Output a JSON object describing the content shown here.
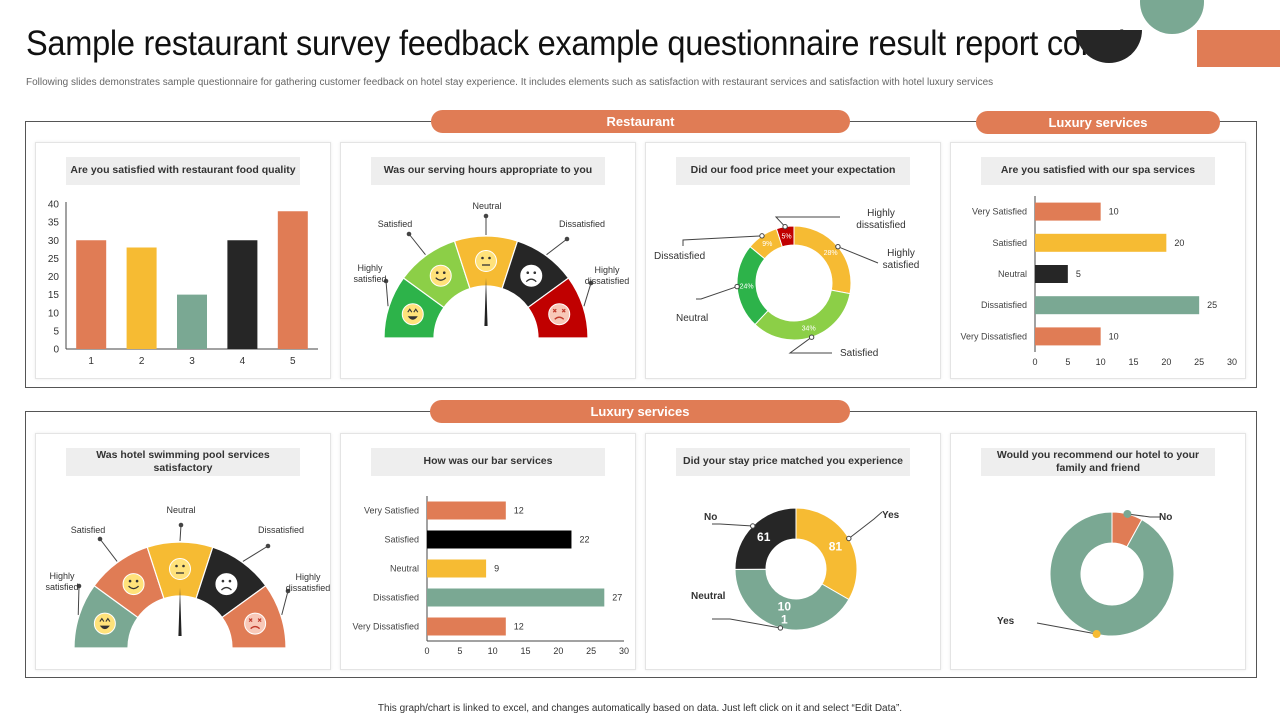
{
  "title": "Sample restaurant survey feedback example questionnaire result report contd.",
  "subtitle": "Following slides demonstrates sample questionnaire for gathering customer feedback on hotel stay experience. It includes elements such as satisfaction with restaurant services and satisfaction with hotel luxury services",
  "footer": "This graph/chart is linked to excel, and changes automatically based on data. Just left click on it and select “Edit Data”.",
  "sections": {
    "restaurant_label": "Restaurant",
    "luxury_top_label": "Luxury services",
    "luxury_bottom_label": "Luxury services"
  },
  "colors": {
    "orange": "#e07c55",
    "yellow": "#f6bb33",
    "green": "#7aa893",
    "black": "#262626",
    "bright_green": "#2db34a",
    "light_green": "#8ccf47",
    "red": "#c00000"
  },
  "cards": {
    "c1": "Are you satisfied  with restaurant  food quality",
    "c2": "Was our serving hours appropriate to you",
    "c3": "Did our food price meet your expectation",
    "c4": "Are you satisfied  with our spa services",
    "c5": "Was hotel swimming pool services satisfactory",
    "c6": "How was our bar services",
    "c7": "Did your stay  price matched  you experience",
    "c8": "Would you recommend our hotel to your family and friend"
  },
  "chart_data": [
    {
      "id": "food-quality",
      "type": "bar",
      "categories": [
        "1",
        "2",
        "3",
        "4",
        "5"
      ],
      "values": [
        30,
        28,
        15,
        30,
        38
      ],
      "colors": [
        "#e07c55",
        "#f6bb33",
        "#7aa893",
        "#262626",
        "#e07c55"
      ],
      "ylim": [
        0,
        40
      ],
      "yticks": [
        "0",
        "5",
        "10",
        "15",
        "20",
        "25",
        "30",
        "35",
        "40"
      ]
    },
    {
      "id": "serving-hours",
      "type": "gauge",
      "segments": [
        {
          "label": "Highly satisfied",
          "color": "#2db34a",
          "face": "very-happy"
        },
        {
          "label": "Satisfied",
          "color": "#8ccf47",
          "face": "happy"
        },
        {
          "label": "Neutral",
          "color": "#f6bb33",
          "face": "neutral"
        },
        {
          "label": "Dissatisfied",
          "color": "#262626",
          "face": "sad"
        },
        {
          "label": "Highly dissatisfied",
          "color": "#c00000",
          "face": "very-sad"
        }
      ]
    },
    {
      "id": "food-price",
      "type": "pie",
      "slices": [
        {
          "label": "Highly dissatisfied",
          "value": 5,
          "text": "5%",
          "color": "#c00000"
        },
        {
          "label": "Highly satisfied",
          "value": 28,
          "text": "28%",
          "color": "#f6bb33"
        },
        {
          "label": "Satisfied",
          "value": 34,
          "text": "34%",
          "color": "#8ccf47"
        },
        {
          "label": "Neutral",
          "value": 24,
          "text": "24%",
          "color": "#2db34a"
        },
        {
          "label": "Dissatisfied",
          "value": 9,
          "text": "9%",
          "color": "#f6bb33"
        }
      ]
    },
    {
      "id": "spa-services",
      "type": "bar",
      "orientation": "horizontal",
      "categories": [
        "Very Satisfied",
        "Satisfied",
        "Neutral",
        "Dissatisfied",
        "Very Dissatisfied"
      ],
      "values": [
        10,
        20,
        5,
        25,
        10
      ],
      "colors": [
        "#e07c55",
        "#f6bb33",
        "#262626",
        "#7aa893",
        "#e07c55"
      ],
      "xlim": [
        0,
        30
      ],
      "xticks": [
        "0",
        "5",
        "10",
        "15",
        "20",
        "25",
        "30"
      ]
    },
    {
      "id": "swimming-pool",
      "type": "gauge",
      "segments": [
        {
          "label": "Highly satisfied",
          "color": "#7aa893",
          "face": "very-happy"
        },
        {
          "label": "Satisfied",
          "color": "#e07c55",
          "face": "happy"
        },
        {
          "label": "Neutral",
          "color": "#f6bb33",
          "face": "neutral"
        },
        {
          "label": "Dissatisfied",
          "color": "#262626",
          "face": "sad"
        },
        {
          "label": "Highly dissatisfied",
          "color": "#e07c55",
          "face": "very-sad"
        }
      ]
    },
    {
      "id": "bar-services",
      "type": "bar",
      "orientation": "horizontal",
      "categories": [
        "Very Satisfied",
        "Satisfied",
        "Neutral",
        "Dissatisfied",
        "Very Dissatisfied"
      ],
      "values": [
        12,
        22,
        9,
        27,
        12
      ],
      "colors": [
        "#e07c55",
        "#000000",
        "#f6bb33",
        "#7aa893",
        "#e07c55"
      ],
      "xlim": [
        0,
        30
      ],
      "xticks": [
        "0",
        "5",
        "10",
        "15",
        "20",
        "25",
        "30"
      ]
    },
    {
      "id": "stay-price",
      "type": "pie",
      "slices": [
        {
          "label": "Yes",
          "value": 81,
          "text": "81",
          "color": "#f6bb33"
        },
        {
          "label": "Neutral",
          "value": 101,
          "text": "10\n1",
          "color": "#7aa893"
        },
        {
          "label": "No",
          "value": 61,
          "text": "61",
          "color": "#262626"
        }
      ]
    },
    {
      "id": "recommend",
      "type": "pie",
      "slices": [
        {
          "label": "No",
          "value": 8,
          "color": "#e07c55"
        },
        {
          "label": "Yes",
          "value": 92,
          "color": "#7aa893"
        }
      ]
    }
  ]
}
